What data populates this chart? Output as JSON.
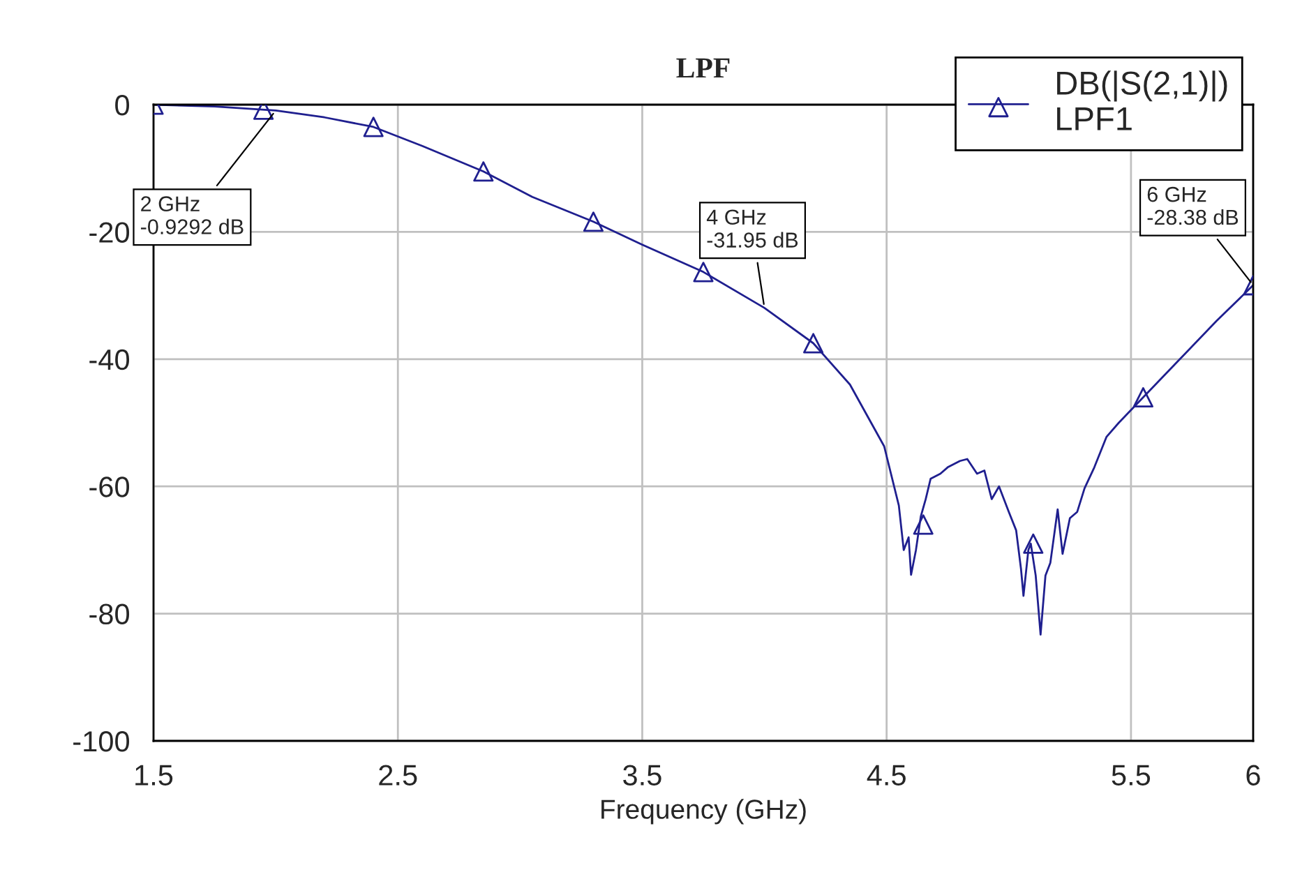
{
  "chart_data": {
    "type": "line",
    "title": "LPF",
    "xlabel": "Frequency (GHz)",
    "series": [
      {
        "name": "DB(|S(2,1)|)\nLPF1",
        "color": "#1f1f8f",
        "marker": "none",
        "x": [
          1.5,
          1.75,
          2.0,
          2.2,
          2.4,
          2.6,
          2.85,
          3.05,
          3.3,
          3.5,
          3.75,
          4.0,
          4.2,
          4.35,
          4.49,
          4.55,
          4.57,
          4.59,
          4.6,
          4.62,
          4.64,
          4.66,
          4.68,
          4.72,
          4.75,
          4.8,
          4.83,
          4.87,
          4.9,
          4.93,
          4.96,
          5.0,
          5.03,
          5.05,
          5.06,
          5.08,
          5.09,
          5.11,
          5.13,
          5.15,
          5.17,
          5.2,
          5.22,
          5.25,
          5.28,
          5.31,
          5.35,
          5.4,
          5.45,
          5.5,
          5.55,
          5.7,
          5.85,
          6.0
        ],
        "values": [
          0,
          -0.3,
          -0.93,
          -2,
          -3.5,
          -6.5,
          -10.5,
          -14.5,
          -18.4,
          -22,
          -26.3,
          -31.95,
          -37.5,
          -44,
          -53.7,
          -63,
          -70,
          -68,
          -73.9,
          -70,
          -64.7,
          -62,
          -58.8,
          -58,
          -57,
          -56,
          -55.7,
          -58,
          -57.5,
          -62,
          -60,
          -64,
          -66.9,
          -73,
          -77.2,
          -70,
          -69,
          -74,
          -83.3,
          -74,
          -72,
          -63.6,
          -70.6,
          -65,
          -64,
          -60.3,
          -57,
          -52.2,
          -50,
          -48,
          -46,
          -40,
          -34,
          -28.38
        ]
      },
      {
        "type": "scatter",
        "color": "#1f1f8f",
        "marker": "triangle",
        "x": [
          1.5,
          1.95,
          2.4,
          2.85,
          3.3,
          3.75,
          4.2,
          4.65,
          5.1,
          5.55,
          6.0
        ],
        "values": [
          0,
          -0.8,
          -3.5,
          -10.5,
          -18.4,
          -26.3,
          -37.5,
          -66,
          -69,
          -46,
          -28.38
        ]
      }
    ],
    "xlim": [
      1.5,
      6
    ],
    "xticks": [
      1.5,
      2.5,
      3.5,
      4.5,
      5.5,
      6
    ],
    "ylim": [
      -100,
      0
    ],
    "yticks": [
      0,
      -20,
      -40,
      -60,
      -80,
      -100
    ],
    "grid": true,
    "legend": "top right",
    "annotations": [
      {
        "text": "2 GHz\n-0.9292 dB",
        "x": 2,
        "y": -0.9292
      },
      {
        "text": "4 GHz\n-31.95 dB",
        "x": 4,
        "y": -31.95
      },
      {
        "text": "6 GHz\n-28.38 dB",
        "x": 6,
        "y": -28.38
      }
    ]
  }
}
